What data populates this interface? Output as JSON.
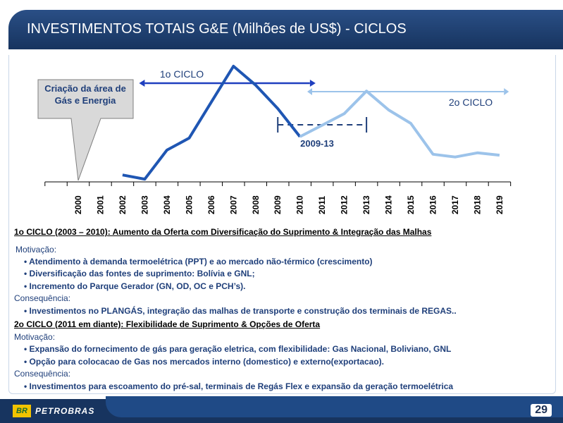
{
  "header": {
    "title": "INVESTIMENTOS TOTAIS G&E (Milhões de US$) - CICLOS"
  },
  "chart_data": {
    "type": "line",
    "categories": [
      "2000",
      "2001",
      "2002",
      "2003",
      "2004",
      "2005",
      "2006",
      "2007",
      "2008",
      "2009",
      "2010",
      "2011",
      "2012",
      "2013",
      "2014",
      "2015",
      "2016",
      "2017",
      "2018",
      "2019"
    ],
    "series": [
      {
        "name": "1o CICLO",
        "color": "#1f56b3",
        "values": [
          null,
          null,
          15,
          6,
          69,
          95,
          173,
          251,
          210,
          159,
          98,
          null,
          null,
          null,
          null,
          null,
          null,
          null,
          null,
          null
        ]
      },
      {
        "name": "2o CICLO",
        "color": "#9cc3ea",
        "values": [
          null,
          null,
          null,
          null,
          null,
          null,
          null,
          null,
          null,
          null,
          98,
          123,
          148,
          197,
          156,
          127,
          60,
          54,
          63,
          58
        ]
      }
    ],
    "ylim": [
      0,
      260
    ],
    "annotations": {
      "callout": "Criação da área de Gás e Energia",
      "cycle1": "1o CICLO",
      "cycle2": "2o CICLO",
      "gap": "2009-13"
    }
  },
  "text": {
    "c1_head": "1o  CICLO (2003 – 2010): Aumento da Oferta com Diversificação do Suprimento & Integração das Malhas",
    "c1_motiv": "Motivação:",
    "c1_b1": "• Atendimento à demanda termoelétrica (PPT) e ao mercado não-térmico (crescimento)",
    "c1_b2": "• Diversificação das fontes de suprimento: Bolívia e GNL;",
    "c1_b3": "• Incremento do Parque Gerador (GN, OD, OC e PCH’s).",
    "c1_cons": "Consequência:",
    "c1_b4": "• Investimentos no PLANGÁS, integração das malhas de transporte e construção dos terminais de REGAS..",
    "c2_head": "2o  CICLO (2011 em diante): Flexibilidade de Suprimento & Opções de Oferta",
    "c2_motiv": "Motivação:",
    "c2_b1": "• Expansão do fornecimento de gás para geração eletrica, com flexibilidade: Gas Nacional, Boliviano, GNL",
    "c2_b2": "• Opção para colocacao de Gas nos mercados interno (domestico) e externo(exportacao).",
    "c2_cons": "Consequência:",
    "c2_b3": "• Investimentos para escoamento do pré-sal, terminais de Regás Flex e expansão da geração termoelétrica"
  },
  "footer": {
    "logo_mark": "BR",
    "logo_text": "PETROBRAS",
    "page_number": "29"
  }
}
